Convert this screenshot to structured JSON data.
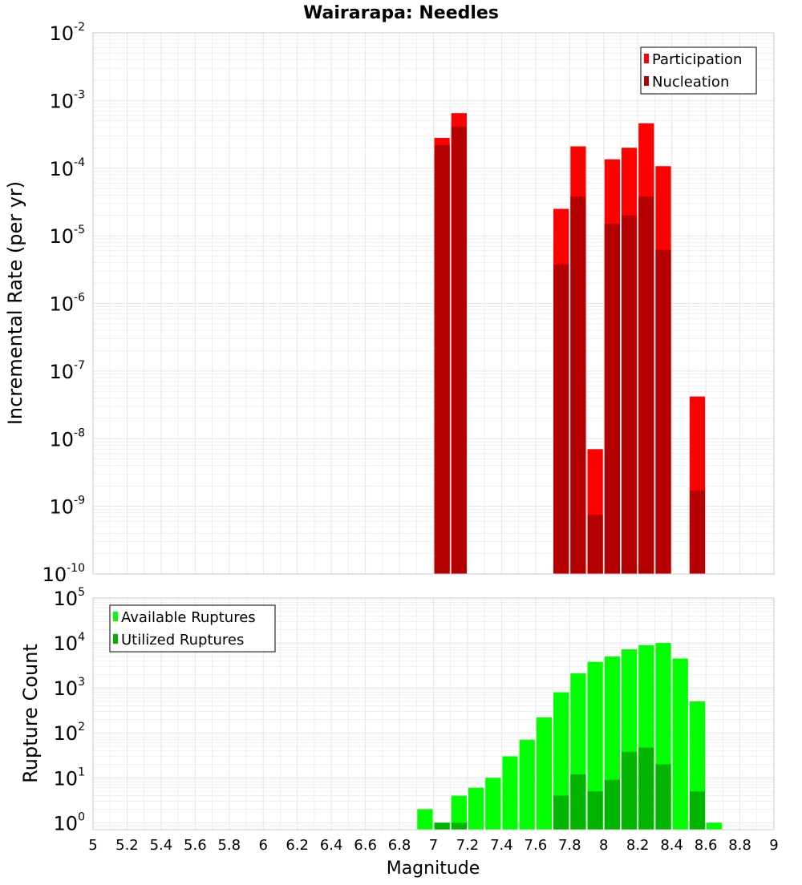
{
  "title": "Wairarapa: Needles",
  "xlabel": "Magnitude",
  "colors": {
    "participation": "#ff0000",
    "nucleation": "#b40000",
    "available": "#00ff00",
    "utilized": "#00b400",
    "grid": "#e6e6e6",
    "axes_border": "#c8c8c8"
  },
  "chart_data": [
    {
      "type": "bar",
      "ylabel": "Incremental Rate (per yr)",
      "yscale": "log",
      "ylim": [
        1e-10,
        0.01
      ],
      "xlim": [
        5,
        9
      ],
      "grid": true,
      "legend_position": "top-right",
      "series": [
        {
          "name": "Participation",
          "x": [
            7.05,
            7.15,
            7.75,
            7.85,
            7.95,
            8.05,
            8.15,
            8.25,
            8.35,
            8.55
          ],
          "values": [
            0.00028,
            0.00065,
            2.5e-05,
            0.00021,
            7e-09,
            0.000135,
            0.0002,
            0.00046,
            0.000107,
            4.2e-08
          ]
        },
        {
          "name": "Nucleation",
          "x": [
            7.05,
            7.15,
            7.75,
            7.85,
            7.95,
            8.05,
            8.15,
            8.25,
            8.35,
            8.55
          ],
          "values": [
            0.00022,
            0.00041,
            3.8e-06,
            3.8e-05,
            7.5e-10,
            1.5e-05,
            2e-05,
            3.8e-05,
            6.2e-06,
            1.7e-09
          ]
        }
      ],
      "yticks": [
        {
          "mant": "10",
          "exp": "-10"
        },
        {
          "mant": "10",
          "exp": "-9"
        },
        {
          "mant": "10",
          "exp": "-8"
        },
        {
          "mant": "10",
          "exp": "-7"
        },
        {
          "mant": "10",
          "exp": "-6"
        },
        {
          "mant": "10",
          "exp": "-5"
        },
        {
          "mant": "10",
          "exp": "-4"
        },
        {
          "mant": "10",
          "exp": "-3"
        },
        {
          "mant": "10",
          "exp": "-2"
        }
      ]
    },
    {
      "type": "bar",
      "ylabel": "Rupture Count",
      "xlabel": "Magnitude",
      "yscale": "log",
      "ylim": [
        0.7,
        100000
      ],
      "xlim": [
        5,
        9
      ],
      "grid": true,
      "legend_position": "top-left",
      "series": [
        {
          "name": "Available Ruptures",
          "x": [
            6.95,
            7.05,
            7.15,
            7.25,
            7.35,
            7.45,
            7.55,
            7.65,
            7.75,
            7.85,
            7.95,
            8.05,
            8.15,
            8.25,
            8.35,
            8.45,
            8.55,
            8.65
          ],
          "values": [
            2,
            1,
            4,
            6,
            10,
            30,
            70,
            220,
            800,
            2100,
            3800,
            5000,
            7200,
            8900,
            10000,
            4500,
            500,
            1
          ]
        },
        {
          "name": "Utilized Ruptures",
          "x": [
            7.05,
            7.15,
            7.75,
            7.85,
            7.95,
            8.05,
            8.15,
            8.25,
            8.35,
            8.55
          ],
          "values": [
            1,
            1,
            4,
            12,
            5,
            9,
            38,
            47,
            20,
            5
          ]
        }
      ],
      "yticks": [
        {
          "mant": "10",
          "exp": "0"
        },
        {
          "mant": "10",
          "exp": "1"
        },
        {
          "mant": "10",
          "exp": "2"
        },
        {
          "mant": "10",
          "exp": "3"
        },
        {
          "mant": "10",
          "exp": "4"
        },
        {
          "mant": "10",
          "exp": "5"
        }
      ],
      "xticks": [
        "5",
        "5.2",
        "5.4",
        "5.6",
        "5.8",
        "6",
        "6.2",
        "6.4",
        "6.6",
        "6.8",
        "7",
        "7.2",
        "7.4",
        "7.6",
        "7.8",
        "8",
        "8.2",
        "8.4",
        "8.6",
        "8.8",
        "9"
      ]
    }
  ]
}
